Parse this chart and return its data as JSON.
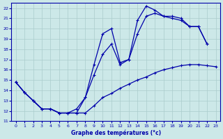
{
  "title": "",
  "xlabel": "Graphe des températures (°c)",
  "ylabel": "",
  "bg_color": "#cce8e8",
  "grid_color": "#aacccc",
  "line_color": "#0000aa",
  "xlim": [
    -0.5,
    23.5
  ],
  "ylim": [
    11,
    22.5
  ],
  "xticks": [
    0,
    1,
    2,
    3,
    4,
    5,
    6,
    7,
    8,
    9,
    10,
    11,
    12,
    13,
    14,
    15,
    16,
    17,
    18,
    19,
    20,
    21,
    22,
    23
  ],
  "yticks": [
    11,
    12,
    13,
    14,
    15,
    16,
    17,
    18,
    19,
    20,
    21,
    22
  ],
  "series_main_x": [
    0,
    1,
    2,
    3,
    4,
    5,
    6,
    7,
    8,
    9,
    10,
    11,
    12,
    13,
    14,
    15,
    16,
    17,
    18,
    19,
    20,
    21,
    22
  ],
  "series_main_y": [
    14.8,
    13.8,
    13.0,
    12.2,
    12.2,
    11.8,
    11.8,
    12.2,
    13.3,
    16.5,
    19.5,
    20.0,
    16.7,
    17.0,
    20.8,
    22.2,
    21.8,
    21.2,
    21.2,
    21.0,
    20.2,
    20.2,
    18.5
  ],
  "series_diag_x": [
    0,
    1,
    2,
    3,
    4,
    5,
    6,
    7,
    8,
    9,
    10,
    11,
    12,
    13,
    14,
    15,
    16,
    17,
    18,
    19,
    20,
    21,
    22,
    23
  ],
  "series_diag_y": [
    14.8,
    13.8,
    13.0,
    12.2,
    12.2,
    11.8,
    11.8,
    11.8,
    11.8,
    12.5,
    13.3,
    13.7,
    14.2,
    14.6,
    15.0,
    15.3,
    15.7,
    16.0,
    16.2,
    16.4,
    16.5,
    16.5,
    16.4,
    16.3
  ],
  "series_mid_x": [
    0,
    1,
    2,
    3,
    4,
    5,
    6,
    7,
    8,
    9,
    10,
    11,
    12,
    13,
    14,
    15,
    16,
    17,
    18,
    19,
    20,
    21,
    22
  ],
  "series_mid_y": [
    14.8,
    13.8,
    13.0,
    12.2,
    12.2,
    11.8,
    11.8,
    11.8,
    13.3,
    15.5,
    17.5,
    18.5,
    16.5,
    17.0,
    19.5,
    21.2,
    21.5,
    21.2,
    21.0,
    20.8,
    20.2,
    20.2,
    18.5
  ]
}
